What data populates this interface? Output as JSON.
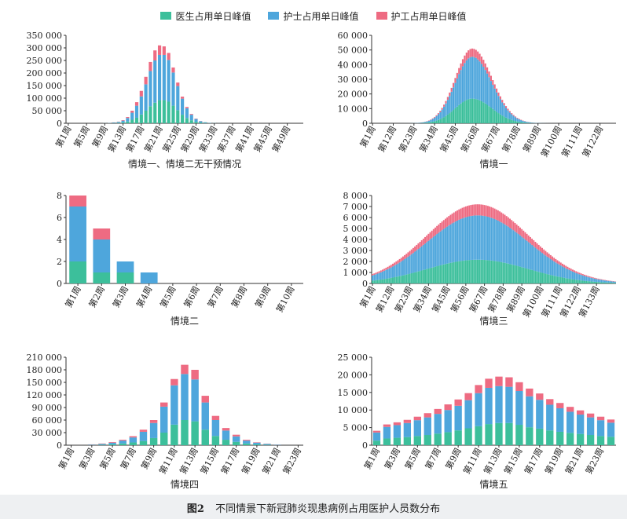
{
  "legend": [
    {
      "label": "医生占用单日峰值",
      "color": "#3cbf9b"
    },
    {
      "label": "护士占用单日峰值",
      "color": "#4ea6dc"
    },
    {
      "label": "护工占用单日峰值",
      "color": "#ee6b82"
    }
  ],
  "caption": {
    "number": "图2",
    "text": "不同情景下新冠肺炎现患病例占用医护人员数分布"
  },
  "chart_data": [
    {
      "type": "bar",
      "stacked": true,
      "title": "情境一、情境二无干预情况",
      "ylim": [
        0,
        350000
      ],
      "yticks": [
        "0",
        "50 000",
        "100 000",
        "150 000",
        "200 000",
        "250 000",
        "300 000",
        "350 000"
      ],
      "yticks_values": [
        0,
        50000,
        100000,
        150000,
        200000,
        250000,
        300000,
        350000
      ],
      "x_count": 52,
      "xtick_labels": [
        "第1周",
        "第5周",
        "第9周",
        "第13周",
        "第17周",
        "第21周",
        "第25周",
        "第29周",
        "第33周",
        "第37周",
        "第41周",
        "第45周",
        "第49周"
      ],
      "series": [
        {
          "name": "医生占用单日峰值",
          "values": [
            0,
            0,
            0,
            0,
            0,
            0,
            0,
            0,
            200,
            500,
            1000,
            2000,
            3500,
            7000,
            14000,
            22000,
            35000,
            50000,
            68000,
            82000,
            92000,
            92000,
            86000,
            70000,
            52000,
            34000,
            21000,
            12000,
            6000,
            3000,
            1500,
            700,
            300,
            100,
            0,
            0,
            0,
            0,
            0,
            0,
            0,
            0,
            0,
            0,
            0,
            0,
            0,
            0,
            0,
            0,
            0,
            0
          ]
        },
        {
          "name": "护士占用单日峰值",
          "values": [
            0,
            0,
            0,
            0,
            0,
            0,
            0,
            0,
            300,
            800,
            2000,
            3500,
            7000,
            14000,
            28000,
            48000,
            72000,
            105000,
            140000,
            168000,
            180000,
            180000,
            166000,
            132000,
            96000,
            64000,
            39000,
            22000,
            11000,
            5000,
            2500,
            1000,
            400,
            200,
            0,
            0,
            0,
            0,
            0,
            0,
            0,
            0,
            0,
            0,
            0,
            0,
            0,
            0,
            0,
            0,
            0,
            0
          ]
        },
        {
          "name": "护工占用单日峰值",
          "values": [
            0,
            0,
            0,
            0,
            0,
            0,
            0,
            0,
            100,
            200,
            500,
            1000,
            2000,
            4000,
            8000,
            14000,
            22000,
            30000,
            36000,
            40000,
            38000,
            34000,
            28000,
            20000,
            14000,
            8000,
            5000,
            3000,
            1500,
            700,
            300,
            100,
            0,
            0,
            0,
            0,
            0,
            0,
            0,
            0,
            0,
            0,
            0,
            0,
            0,
            0,
            0,
            0,
            0,
            0,
            0,
            0
          ]
        }
      ]
    },
    {
      "type": "bar",
      "stacked": true,
      "title": "情境一",
      "ylim": [
        0,
        60000
      ],
      "yticks": [
        "0",
        "10 000",
        "20 000",
        "30 000",
        "40 000",
        "50 000",
        "60 000"
      ],
      "yticks_values": [
        0,
        10000,
        20000,
        30000,
        40000,
        50000,
        60000
      ],
      "x_count": 130,
      "peak_index": 53,
      "peak_total": 51000,
      "spread_left": 9,
      "spread_right": 10.5,
      "shares": [
        0.33,
        0.56,
        0.11
      ],
      "xtick_labels": [
        "第1周",
        "第12周",
        "第23周",
        "第34周",
        "第45周",
        "第56周",
        "第67周",
        "第78周",
        "第89周",
        "第100周",
        "第111周",
        "第122周"
      ]
    },
    {
      "type": "bar",
      "stacked": true,
      "title": "情境二",
      "ylim": [
        0,
        8
      ],
      "yticks": [
        "0",
        "2",
        "4",
        "6",
        "8"
      ],
      "yticks_values": [
        0,
        2,
        4,
        6,
        8
      ],
      "x_count": 10,
      "xtick_labels": [
        "第1周",
        "第2周",
        "第3周",
        "第4周",
        "第5周",
        "第6周",
        "第7周",
        "第8周",
        "第9周",
        "第10周"
      ],
      "series": [
        {
          "name": "医生占用单日峰值",
          "values": [
            2,
            1,
            1,
            0,
            0,
            0,
            0,
            0,
            0,
            0
          ]
        },
        {
          "name": "护士占用单日峰值",
          "values": [
            5,
            3,
            1,
            1,
            0,
            0,
            0,
            0,
            0,
            0
          ]
        },
        {
          "name": "护工占用单日峰值",
          "values": [
            1,
            1,
            0,
            0,
            0,
            0,
            0,
            0,
            0,
            0
          ]
        }
      ]
    },
    {
      "type": "bar",
      "stacked": true,
      "title": "情境三",
      "ylim": [
        0,
        8000
      ],
      "yticks": [
        "0",
        "1 000",
        "2 000",
        "3 000",
        "4 000",
        "5 000",
        "6 000",
        "7 000",
        "8 000"
      ],
      "yticks_values": [
        0,
        1000,
        2000,
        3000,
        4000,
        5000,
        6000,
        7000,
        8000
      ],
      "x_count": 144,
      "peak_index": 62,
      "peak_total": 7200,
      "spread_left": 30,
      "spread_right": 30,
      "shares": [
        0.3,
        0.56,
        0.14
      ],
      "xtick_labels": [
        "第1周",
        "第12周",
        "第23周",
        "第34周",
        "第45周",
        "第56周",
        "第67周",
        "第78周",
        "第89周",
        "第100周",
        "第111周",
        "第122周",
        "第133周"
      ]
    },
    {
      "type": "bar",
      "stacked": true,
      "title": "情境四",
      "ylim": [
        0,
        210000
      ],
      "yticks": [
        "0",
        "30 000",
        "60 000",
        "90 000",
        "120 000",
        "150 000",
        "180 000",
        "210 000"
      ],
      "yticks_values": [
        0,
        30000,
        60000,
        90000,
        120000,
        150000,
        180000,
        210000
      ],
      "x_count": 23,
      "xtick_labels": [
        "第1周",
        "第3周",
        "第5周",
        "第7周",
        "第9周",
        "第11周",
        "第13周",
        "第15周",
        "第17周",
        "第19周",
        "第21周",
        "第23周"
      ],
      "series": [
        {
          "name": "医生占用单日峰值",
          "values": [
            0,
            0,
            500,
            1000,
            2000,
            4000,
            6500,
            10000,
            17000,
            30000,
            49000,
            60000,
            57000,
            37000,
            22000,
            13000,
            8000,
            4000,
            2000,
            1000,
            400,
            0,
            0
          ]
        },
        {
          "name": "护士占用单日峰值",
          "values": [
            0,
            0,
            1000,
            2000,
            4000,
            7000,
            12000,
            22000,
            36000,
            62000,
            94000,
            110000,
            100000,
            65000,
            38000,
            22000,
            13000,
            7000,
            4000,
            2000,
            800,
            0,
            0
          ]
        },
        {
          "name": "护工占用单日峰值",
          "values": [
            0,
            0,
            500,
            1000,
            1500,
            2000,
            3000,
            5000,
            7000,
            10000,
            15000,
            22000,
            23000,
            16000,
            10000,
            6000,
            4000,
            2000,
            1000,
            600,
            300,
            0,
            0
          ]
        }
      ]
    },
    {
      "type": "bar",
      "stacked": true,
      "title": "情境五",
      "ylim": [
        0,
        25000
      ],
      "yticks": [
        "0",
        "5 000",
        "10 000",
        "15 000",
        "20 000",
        "25 000"
      ],
      "yticks_values": [
        0,
        5000,
        10000,
        15000,
        20000,
        25000
      ],
      "x_count": 24,
      "xtick_labels": [
        "第1周",
        "第3周",
        "第5周",
        "第7周",
        "第9周",
        "第11周",
        "第13周",
        "第15周",
        "第17周",
        "第19周",
        "第21周",
        "第23周"
      ],
      "series": [
        {
          "name": "医生占用单日峰值",
          "values": [
            1300,
            1900,
            2100,
            2300,
            2600,
            2900,
            3300,
            3700,
            4200,
            4800,
            5400,
            6000,
            6300,
            6300,
            5800,
            5100,
            4700,
            4200,
            3800,
            3500,
            3200,
            2900,
            2600,
            2400
          ]
        },
        {
          "name": "护士占用单日峰值",
          "values": [
            2300,
            3300,
            3600,
            4000,
            4500,
            5000,
            5600,
            6300,
            7000,
            8000,
            9400,
            10300,
            10500,
            10300,
            9600,
            8800,
            8200,
            7300,
            6700,
            6000,
            5500,
            5000,
            4500,
            4000
          ]
        },
        {
          "name": "护工占用单日峰值",
          "values": [
            500,
            700,
            800,
            900,
            1000,
            1200,
            1400,
            1600,
            1800,
            2000,
            2300,
            2600,
            2700,
            2700,
            2500,
            2200,
            1800,
            1600,
            1500,
            1400,
            1200,
            1100,
            1000,
            900
          ]
        }
      ]
    }
  ]
}
